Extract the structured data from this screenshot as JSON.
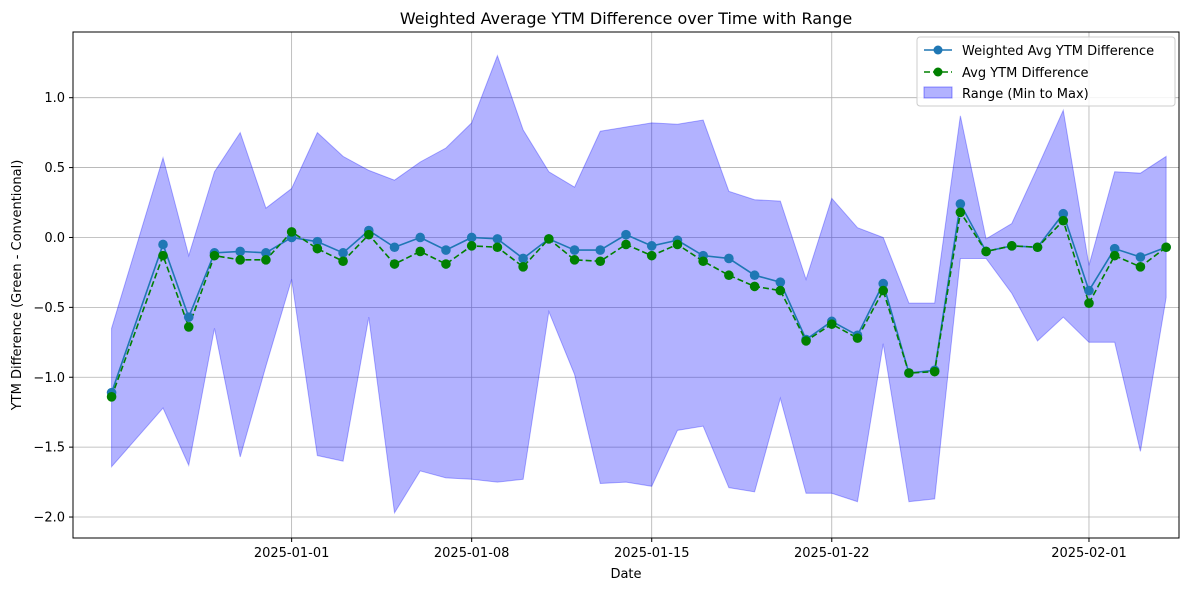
{
  "chart_data": {
    "type": "line",
    "title": "Weighted Average YTM Difference over Time with Range",
    "xlabel": "Date",
    "ylabel": "YTM Difference (Green - Conventional)",
    "xlim": [
      "2024-12-23T12:00",
      "2025-02-04T12:00"
    ],
    "ylim": [
      -2.15,
      1.47
    ],
    "grid": true,
    "legend_position": "top-right",
    "x_ticks": [
      "2025-01-01",
      "2025-01-08",
      "2025-01-15",
      "2025-01-22",
      "2025-02-01"
    ],
    "y_ticks": [
      -2.0,
      -1.5,
      -1.0,
      -0.5,
      0.0,
      0.5,
      1.0
    ],
    "y_tick_labels": [
      "−2.0",
      "−1.5",
      "−1.0",
      "−0.5",
      "0.0",
      "0.5",
      "1.0"
    ],
    "dates": [
      "2024-12-25",
      "2024-12-27",
      "2024-12-28",
      "2024-12-29",
      "2024-12-30",
      "2024-12-31",
      "2025-01-01",
      "2025-01-02",
      "2025-01-03",
      "2025-01-04",
      "2025-01-05",
      "2025-01-06",
      "2025-01-07",
      "2025-01-08",
      "2025-01-09",
      "2025-01-10",
      "2025-01-11",
      "2025-01-12",
      "2025-01-13",
      "2025-01-14",
      "2025-01-15",
      "2025-01-16",
      "2025-01-17",
      "2025-01-18",
      "2025-01-19",
      "2025-01-20",
      "2025-01-21",
      "2025-01-22",
      "2025-01-23",
      "2025-01-24",
      "2025-01-25",
      "2025-01-26",
      "2025-01-27",
      "2025-01-28",
      "2025-01-29",
      "2025-01-30",
      "2025-01-31",
      "2025-02-01",
      "2025-02-02",
      "2025-02-03",
      "2025-02-04"
    ],
    "series": [
      {
        "name": "Weighted Avg YTM Difference",
        "color": "#1f77b4",
        "style": "solid",
        "marker": "circle",
        "values": [
          -1.11,
          -0.05,
          -0.57,
          -0.11,
          -0.1,
          -0.11,
          0.0,
          -0.03,
          -0.11,
          0.05,
          -0.07,
          0.0,
          -0.09,
          0.0,
          -0.01,
          -0.15,
          -0.01,
          -0.09,
          -0.09,
          0.02,
          -0.06,
          -0.02,
          -0.13,
          -0.15,
          -0.27,
          -0.32,
          -0.73,
          -0.6,
          -0.7,
          -0.33,
          -0.97,
          -0.95,
          0.24,
          -0.1,
          -0.06,
          -0.07,
          0.17,
          -0.38,
          -0.08,
          -0.14,
          -0.07
        ]
      },
      {
        "name": "Avg YTM Difference",
        "color": "#008000",
        "style": "dashed",
        "marker": "circle",
        "values": [
          -1.14,
          -0.13,
          -0.64,
          -0.13,
          -0.16,
          -0.16,
          0.04,
          -0.08,
          -0.17,
          0.02,
          -0.19,
          -0.1,
          -0.19,
          -0.06,
          -0.07,
          -0.21,
          -0.01,
          -0.16,
          -0.17,
          -0.05,
          -0.13,
          -0.05,
          -0.17,
          -0.27,
          -0.35,
          -0.38,
          -0.74,
          -0.62,
          -0.72,
          -0.38,
          -0.97,
          -0.96,
          0.18,
          -0.1,
          -0.06,
          -0.07,
          0.12,
          -0.47,
          -0.13,
          -0.21,
          -0.07
        ]
      }
    ],
    "range": {
      "name": "Range (Min to Max)",
      "color": "#0000ff",
      "opacity": 0.3,
      "min": [
        -1.64,
        -1.22,
        -1.63,
        -0.65,
        -1.57,
        -0.92,
        -0.3,
        -1.56,
        -1.6,
        -0.57,
        -1.97,
        -1.67,
        -1.72,
        -1.73,
        -1.75,
        -1.73,
        -0.53,
        -0.98,
        -1.76,
        -1.75,
        -1.78,
        -1.38,
        -1.35,
        -1.79,
        -1.82,
        -1.15,
        -1.83,
        -1.83,
        -1.89,
        -0.76,
        -1.89,
        -1.87,
        -0.15,
        -0.15,
        -0.4,
        -0.74,
        -0.57,
        -0.75,
        -0.75,
        -1.53,
        -0.43
      ],
      "max": [
        -0.65,
        0.57,
        -0.13,
        0.47,
        0.75,
        0.21,
        0.35,
        0.75,
        0.58,
        0.48,
        0.41,
        0.54,
        0.64,
        0.82,
        1.3,
        0.77,
        0.47,
        0.36,
        0.76,
        0.79,
        0.82,
        0.81,
        0.84,
        0.33,
        0.27,
        0.26,
        -0.3,
        0.28,
        0.07,
        0.0,
        -0.47,
        -0.47,
        0.87,
        -0.01,
        0.1,
        0.5,
        0.91,
        -0.2,
        0.47,
        0.46,
        0.58
      ]
    }
  }
}
